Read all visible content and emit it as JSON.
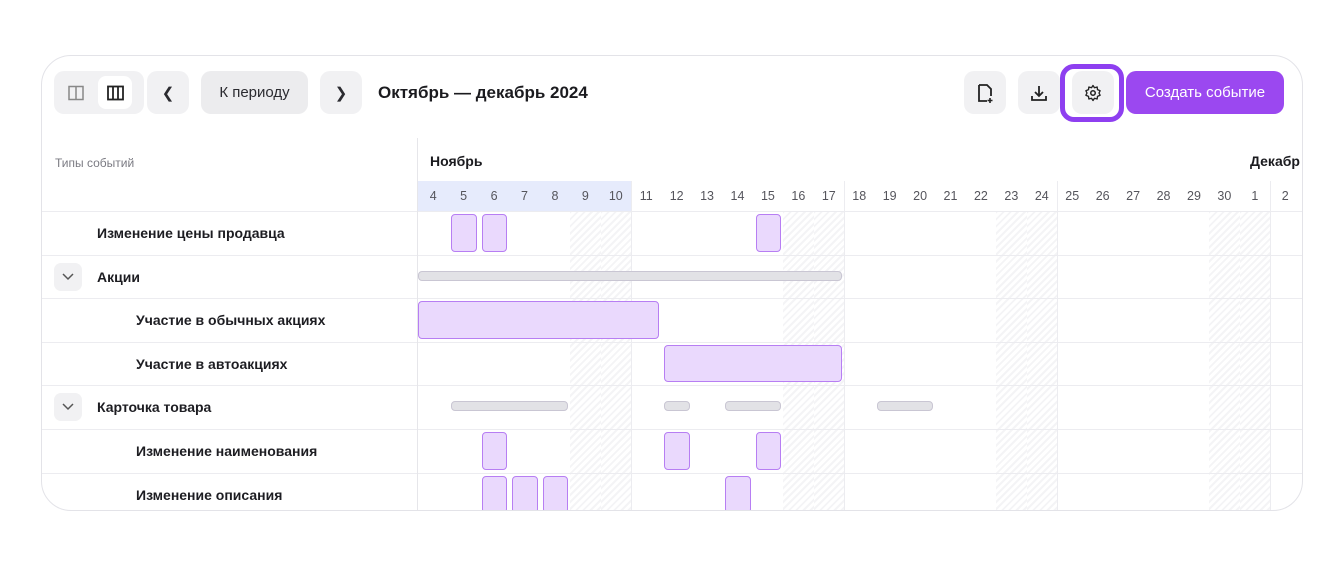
{
  "toolbar": {
    "period_button": "К периоду",
    "title": "Октябрь — декабрь 2024",
    "create_button": "Создать событие",
    "accent": "#9b48f0"
  },
  "table": {
    "column_header": "Типы событий",
    "months": [
      {
        "label": "Ноябрь"
      },
      {
        "label": "Декабр"
      }
    ],
    "days": [
      "4",
      "5",
      "6",
      "7",
      "8",
      "9",
      "10",
      "11",
      "12",
      "13",
      "14",
      "15",
      "16",
      "17",
      "18",
      "19",
      "20",
      "21",
      "22",
      "23",
      "24",
      "25",
      "26",
      "27",
      "28",
      "29",
      "30",
      "1",
      "2"
    ],
    "weekends": [
      5,
      6,
      12,
      13,
      19,
      20,
      26,
      27
    ],
    "highlighted_days": [
      0,
      1,
      2,
      3,
      4,
      5,
      6
    ],
    "rows": [
      {
        "label": "Изменение цены продавца",
        "level": 1,
        "group": false,
        "events": [
          [
            1,
            1
          ],
          [
            2,
            2
          ],
          [
            11,
            11
          ]
        ]
      },
      {
        "label": "Акции",
        "level": 0,
        "group": true,
        "events": [
          [
            0,
            13
          ]
        ]
      },
      {
        "label": "Участие в обычных акциях",
        "level": 2,
        "group": false,
        "events": [
          [
            0,
            7
          ]
        ]
      },
      {
        "label": "Участие в автоакциях",
        "level": 2,
        "group": false,
        "events": [
          [
            8,
            13
          ]
        ]
      },
      {
        "label": "Карточка товара",
        "level": 0,
        "group": true,
        "events": [
          [
            1,
            4
          ],
          [
            8,
            8
          ],
          [
            10,
            11
          ],
          [
            15,
            16
          ]
        ]
      },
      {
        "label": "Изменение наименования",
        "level": 2,
        "group": false,
        "events": [
          [
            2,
            2
          ],
          [
            8,
            8
          ],
          [
            11,
            11
          ]
        ]
      },
      {
        "label": "Изменение описания",
        "level": 2,
        "group": false,
        "events": [
          [
            2,
            2
          ],
          [
            3,
            3
          ],
          [
            4,
            4
          ],
          [
            10,
            10
          ]
        ]
      }
    ]
  }
}
